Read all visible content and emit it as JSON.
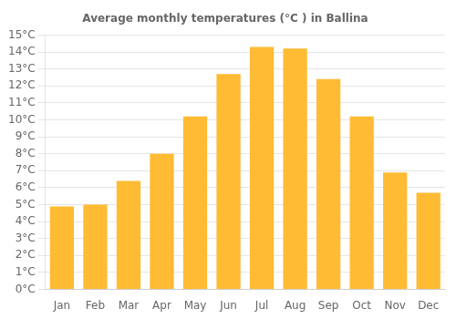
{
  "chart_data": {
    "type": "bar",
    "title": "Average monthly temperatures (°C ) in Ballina",
    "categories": [
      "Jan",
      "Feb",
      "Mar",
      "Apr",
      "May",
      "Jun",
      "Jul",
      "Aug",
      "Sep",
      "Oct",
      "Nov",
      "Dec"
    ],
    "values": [
      4.9,
      5.0,
      6.4,
      8.0,
      10.2,
      12.7,
      14.3,
      14.2,
      12.4,
      10.2,
      6.9,
      5.7
    ],
    "color": "#FFBB33",
    "ylim": [
      0,
      15
    ],
    "yticks": [
      {
        "value": 0,
        "label": "0°C"
      },
      {
        "value": 1,
        "label": "1°C"
      },
      {
        "value": 2,
        "label": "2°C"
      },
      {
        "value": 3,
        "label": "3°C"
      },
      {
        "value": 4,
        "label": "4°C"
      },
      {
        "value": 5,
        "label": "5°C"
      },
      {
        "value": 6,
        "label": "6°C"
      },
      {
        "value": 7,
        "label": "7°C"
      },
      {
        "value": 8,
        "label": "8°C"
      },
      {
        "value": 9,
        "label": "9°C"
      },
      {
        "value": 10,
        "label": "10°C"
      },
      {
        "value": 11,
        "label": "11°C"
      },
      {
        "value": 12,
        "label": "12°C"
      },
      {
        "value": 13,
        "label": "13°C"
      },
      {
        "value": 14,
        "label": "14°C"
      },
      {
        "value": 15,
        "label": "15°C"
      }
    ],
    "grid": true
  }
}
